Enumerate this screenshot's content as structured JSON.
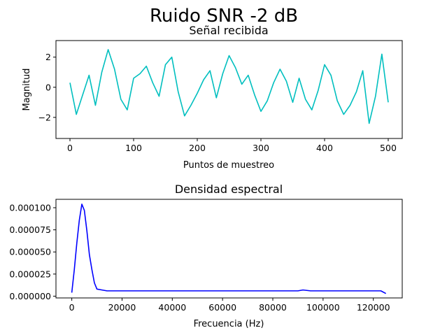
{
  "suptitle": "Ruido SNR -2 dB",
  "colors": {
    "signal": "#00bfbf",
    "psd": "#0000ff",
    "axis": "#000000",
    "background": "#ffffff"
  },
  "chart_data": [
    {
      "type": "line",
      "title": "Señal recibida",
      "xlabel": "Puntos de muestreo",
      "ylabel": "Magnitud",
      "xlim": [
        -22,
        522
      ],
      "ylim": [
        -3.4,
        3.1
      ],
      "xticks": [
        0,
        100,
        200,
        300,
        400,
        500
      ],
      "xtick_labels": [
        "0",
        "100",
        "200",
        "300",
        "400",
        "500"
      ],
      "yticks": [
        -2,
        0,
        2
      ],
      "ytick_labels": [
        "−2",
        "0",
        "2"
      ],
      "grid": false,
      "x": [
        0,
        10,
        20,
        30,
        40,
        50,
        60,
        70,
        80,
        90,
        100,
        110,
        120,
        130,
        140,
        150,
        160,
        170,
        180,
        190,
        200,
        210,
        220,
        230,
        240,
        250,
        260,
        270,
        280,
        290,
        300,
        310,
        320,
        330,
        340,
        350,
        360,
        370,
        380,
        390,
        400,
        410,
        420,
        430,
        440,
        450,
        460,
        470,
        480,
        490,
        500
      ],
      "series": [
        {
          "values": [
            0.3,
            -1.8,
            -0.5,
            0.8,
            -1.2,
            1.0,
            2.5,
            1.2,
            -0.8,
            -1.5,
            0.6,
            0.9,
            1.4,
            0.3,
            -0.6,
            1.5,
            2.0,
            -0.3,
            -1.9,
            -1.2,
            -0.4,
            0.5,
            1.1,
            -0.7,
            0.9,
            2.1,
            1.3,
            0.2,
            0.8,
            -0.5,
            -1.6,
            -0.9,
            0.3,
            1.2,
            0.4,
            -1.0,
            0.6,
            -0.8,
            -1.5,
            -0.2,
            1.5,
            0.8,
            -0.9,
            -1.8,
            -1.2,
            -0.3,
            1.1,
            -2.4,
            -0.6,
            2.2,
            -1.0
          ]
        }
      ]
    },
    {
      "type": "line",
      "title": "Densidad espectral",
      "xlabel": "Frecuencia (Hz)",
      "ylabel": "",
      "xlim": [
        -6300,
        131500
      ],
      "ylim": [
        -2e-06,
        0.0001095
      ],
      "xticks": [
        0,
        20000,
        40000,
        60000,
        80000,
        100000,
        120000
      ],
      "xtick_labels": [
        "0",
        "20000",
        "40000",
        "60000",
        "80000",
        "100000",
        "120000"
      ],
      "yticks": [
        0,
        2.5e-05,
        5e-05,
        7.5e-05,
        0.0001
      ],
      "ytick_labels": [
        "0.000000",
        "0.000025",
        "0.000050",
        "0.000075",
        "0.000100"
      ],
      "grid": false,
      "x": [
        0,
        1000,
        2000,
        3000,
        4000,
        5000,
        6000,
        7000,
        8000,
        9000,
        10000,
        12000,
        14000,
        20000,
        30000,
        40000,
        50000,
        60000,
        70000,
        80000,
        90000,
        92000,
        95000,
        100000,
        110000,
        120000,
        123000,
        125000
      ],
      "series": [
        {
          "values": [
            4e-06,
            3e-05,
            6e-05,
            8.6e-05,
            0.000104,
            9.7e-05,
            7.4e-05,
            4.7e-05,
            3e-05,
            1.5e-05,
            8e-06,
            7e-06,
            6e-06,
            6e-06,
            6e-06,
            6e-06,
            6e-06,
            6e-06,
            6e-06,
            6e-06,
            6e-06,
            7e-06,
            6e-06,
            6e-06,
            6e-06,
            6e-06,
            6e-06,
            3e-06
          ]
        }
      ]
    }
  ]
}
